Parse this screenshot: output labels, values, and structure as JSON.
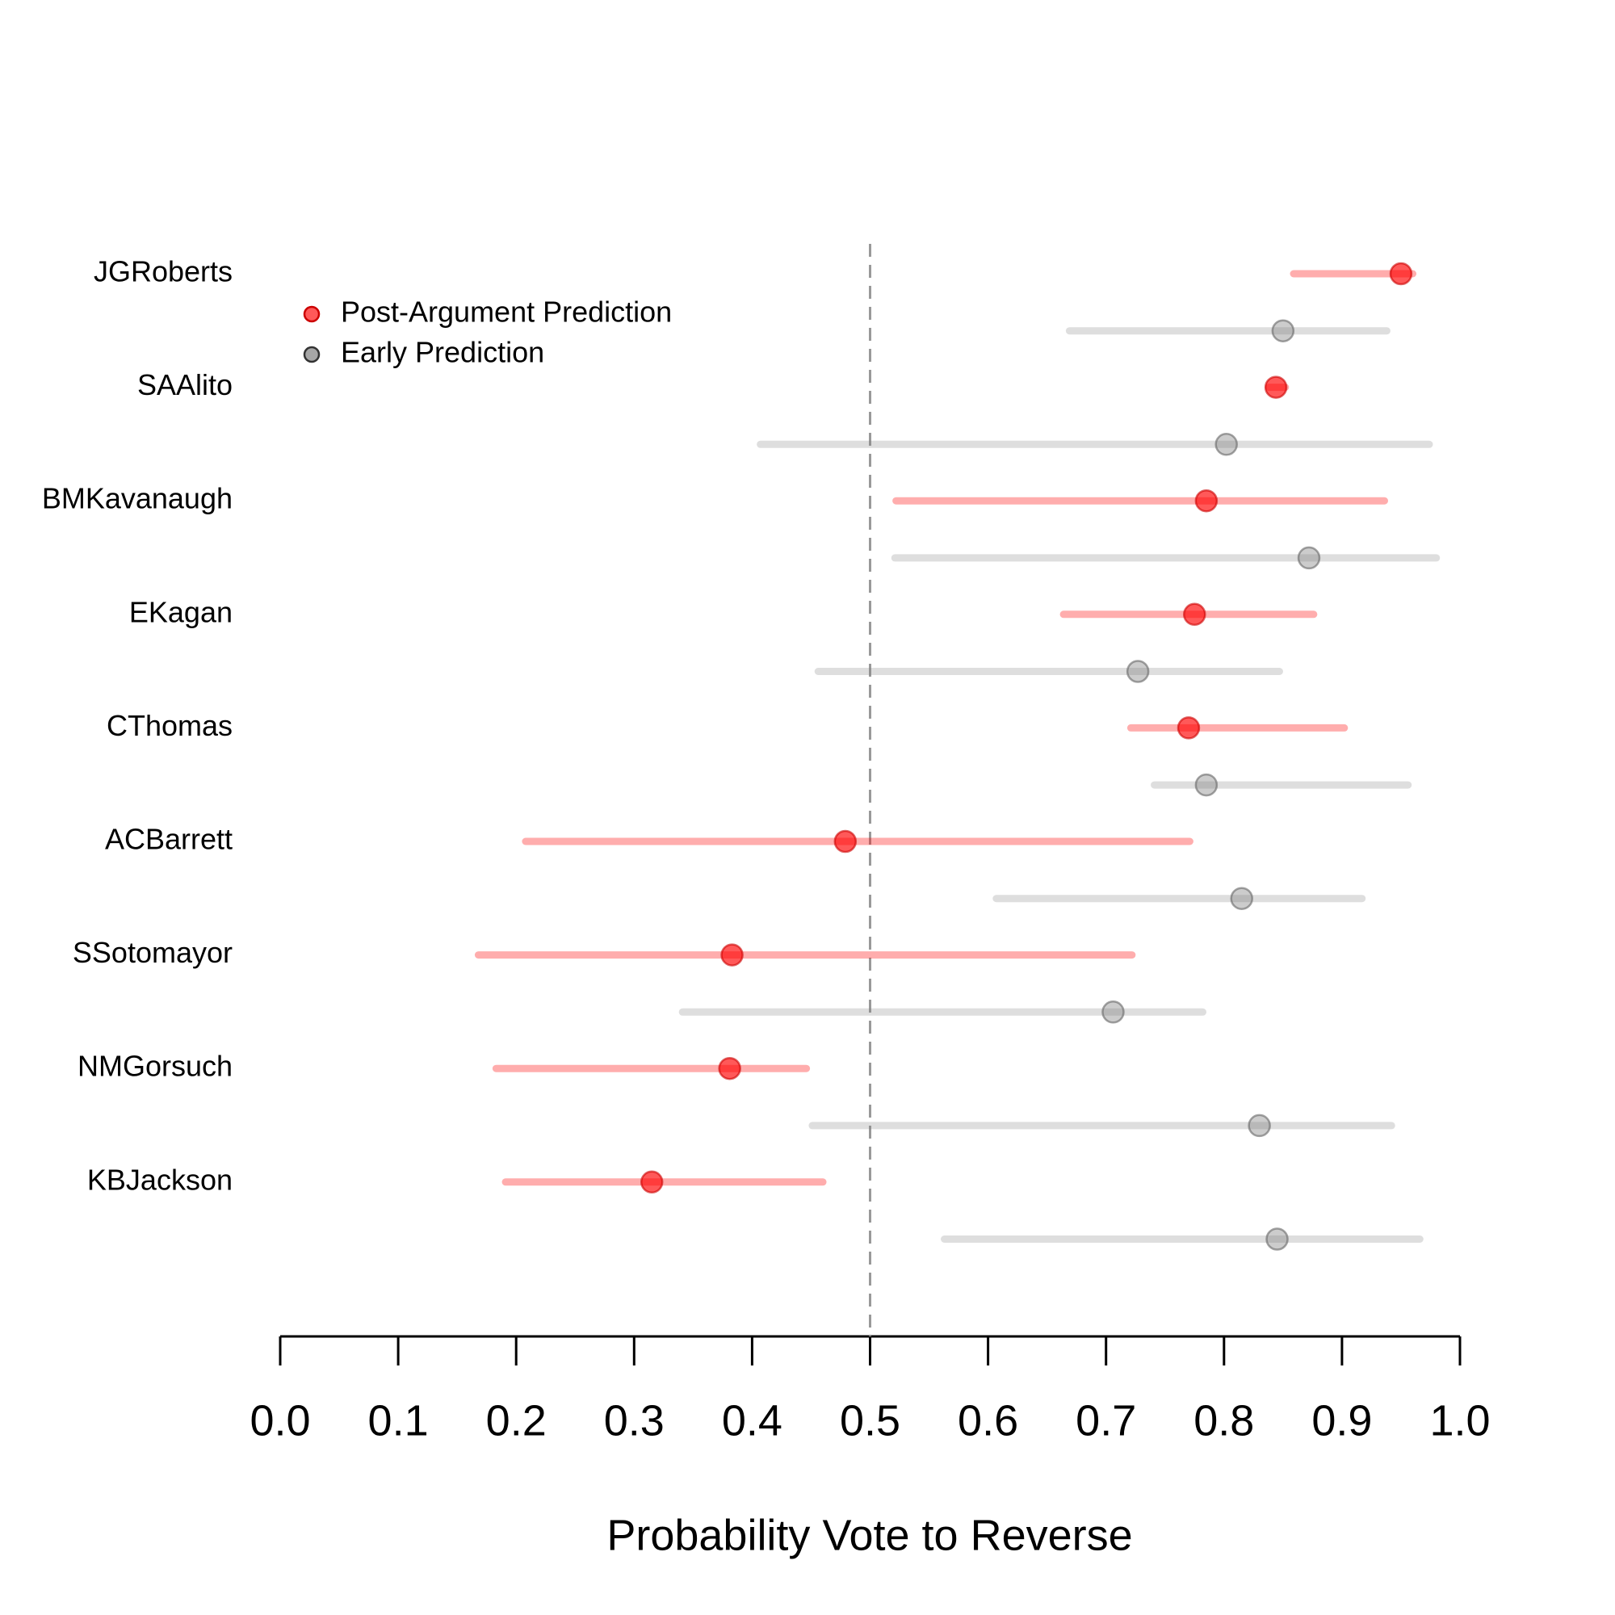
{
  "chart_data": {
    "type": "dot-interval",
    "x_label": "Probability Vote to Reverse",
    "categories": [
      "JGRoberts",
      "SAAlito",
      "BMKavanaugh",
      "EKagan",
      "CThomas",
      "ACBarrett",
      "SSotomayor",
      "NMGorsuch",
      "KBJackson"
    ],
    "series": [
      {
        "name": "Post-Argument Prediction",
        "color": "#ff0000",
        "values": [
          0.95,
          0.844,
          0.785,
          0.775,
          0.77,
          0.479,
          0.383,
          0.381,
          0.315
        ],
        "lower": [
          0.859,
          0.838,
          0.522,
          0.664,
          0.721,
          0.208,
          0.168,
          0.183,
          0.191
        ],
        "upper": [
          0.96,
          0.852,
          0.936,
          0.876,
          0.902,
          0.771,
          0.722,
          0.446,
          0.46
        ]
      },
      {
        "name": "Early Prediction",
        "color": "#808080",
        "values": [
          0.85,
          0.802,
          0.872,
          0.727,
          0.785,
          0.815,
          0.706,
          0.83,
          0.845
        ],
        "lower": [
          0.669,
          0.407,
          0.521,
          0.456,
          0.741,
          0.607,
          0.341,
          0.451,
          0.563
        ],
        "upper": [
          0.938,
          0.974,
          0.98,
          0.847,
          0.956,
          0.917,
          0.782,
          0.942,
          0.966
        ]
      }
    ],
    "xlim": [
      0,
      1
    ],
    "xticks": [
      {
        "value": 0,
        "label": "0.0"
      },
      0.1,
      0.2,
      0.3,
      0.4,
      0.5,
      0.6,
      0.7,
      0.8,
      0.9,
      {
        "value": 1,
        "label": "1.0"
      }
    ],
    "reference_line": 0.5,
    "legend": "top-left"
  }
}
